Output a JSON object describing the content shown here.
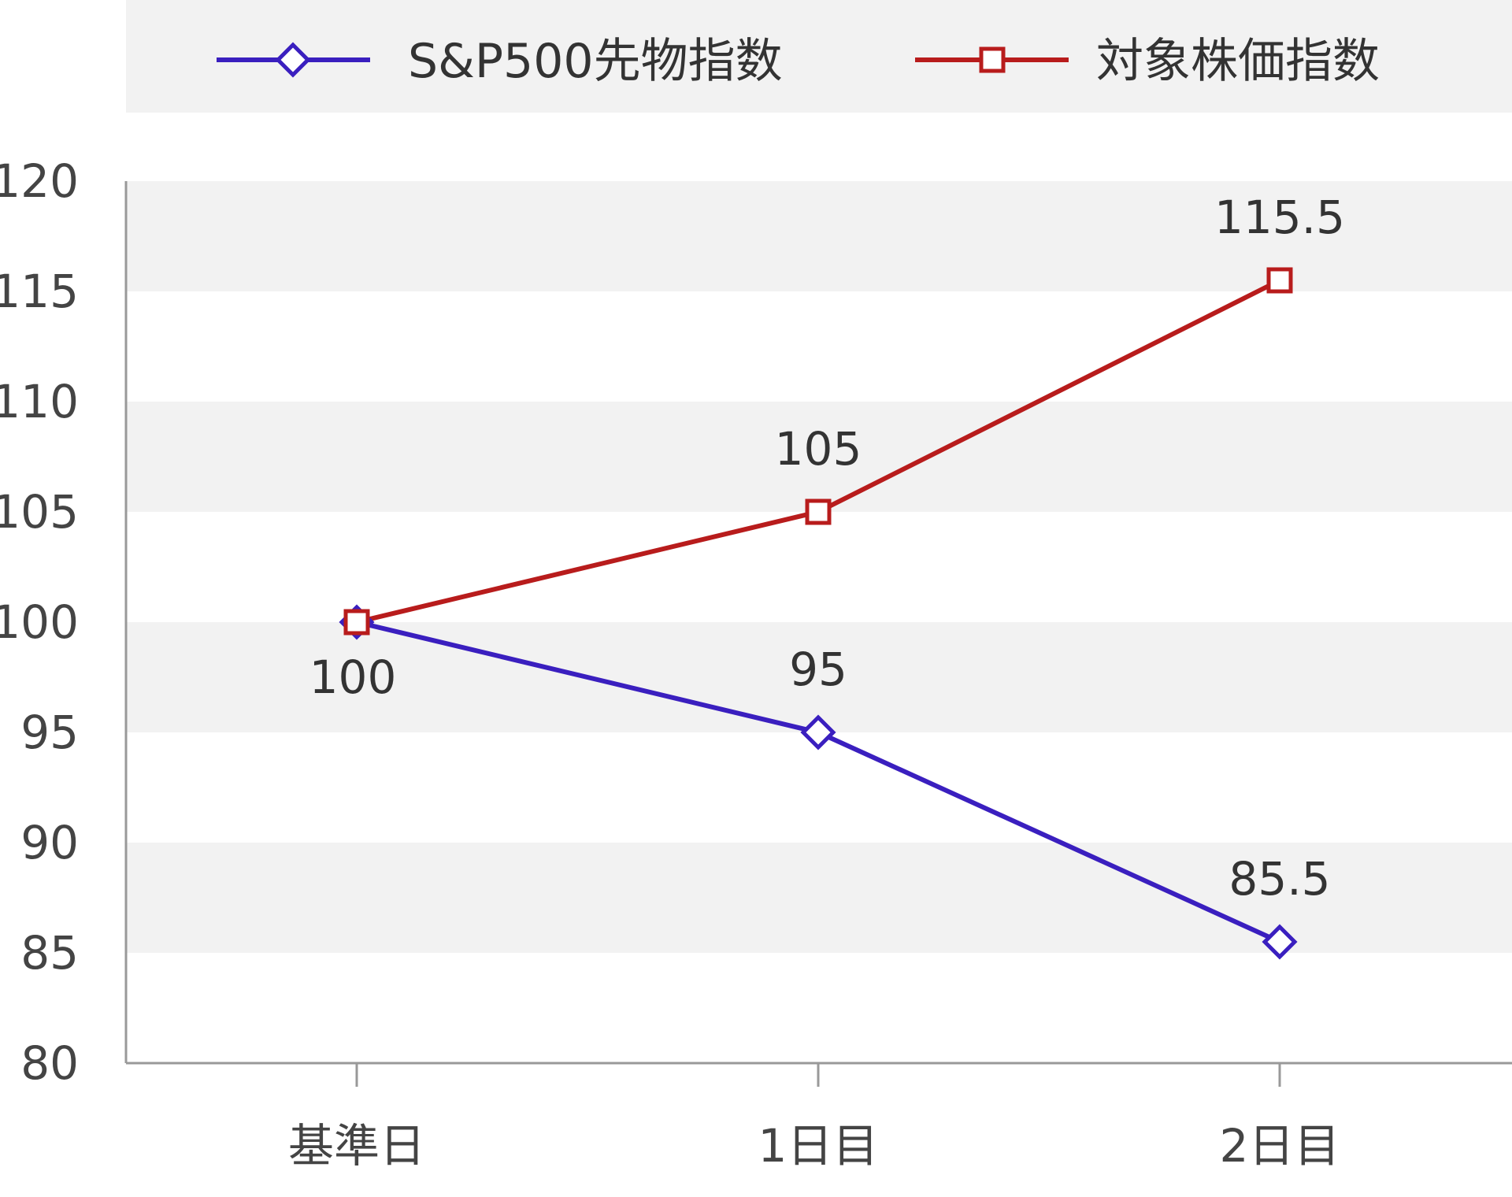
{
  "chart_data": {
    "type": "line",
    "categories": [
      "基準日",
      "1日目",
      "2日目"
    ],
    "series": [
      {
        "name": "S&P500先物指数",
        "values": [
          100,
          95,
          85.5
        ],
        "color": "#3a1fbf",
        "marker": "diamond"
      },
      {
        "name": "対象株価指数",
        "values": [
          100,
          105,
          115.5
        ],
        "color": "#b81c1c",
        "marker": "square"
      }
    ],
    "ylim": [
      80,
      120
    ],
    "yticks": [
      80,
      85,
      90,
      95,
      100,
      105,
      110,
      115,
      120
    ],
    "yaxis_tick_labels": [
      "80",
      "85",
      "90",
      "95",
      "100",
      "105",
      "110",
      "115",
      "120"
    ],
    "data_labels": [
      {
        "text": "100",
        "category": 0,
        "value": 100
      },
      {
        "text": "95",
        "category": 1,
        "value": 95
      },
      {
        "text": "85.5",
        "category": 2,
        "value": 85.5
      },
      {
        "text": "105",
        "category": 1,
        "value": 105
      },
      {
        "text": "115.5",
        "category": 2,
        "value": 115.5
      }
    ],
    "legend_position": "top",
    "grid": "alternating horizontal bands",
    "band_color": "#f2f2f2",
    "axis_color": "#999999"
  }
}
